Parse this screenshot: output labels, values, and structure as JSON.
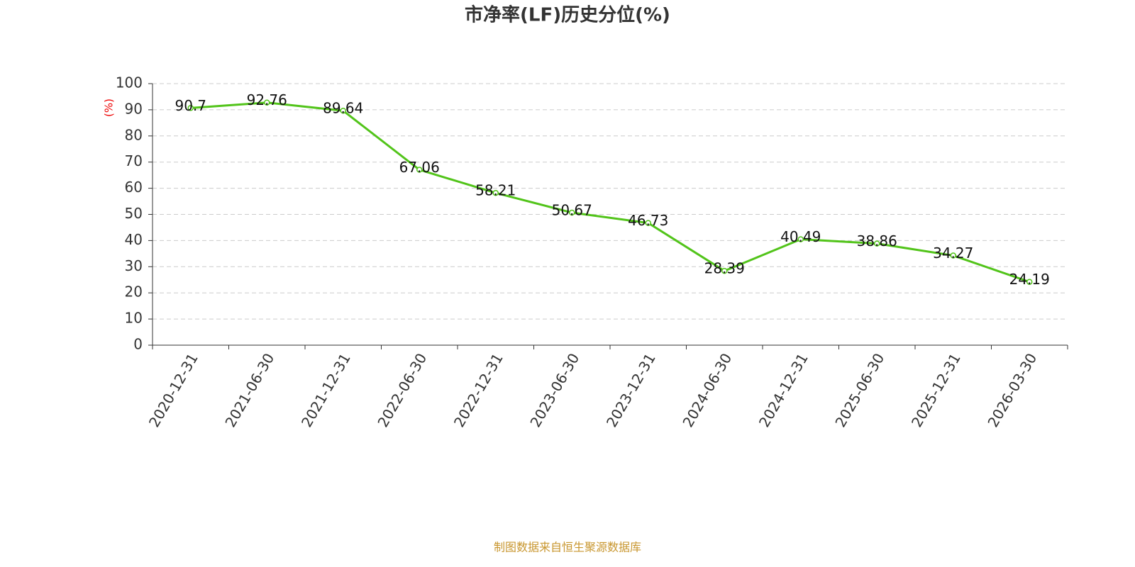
{
  "chart_data": {
    "type": "line",
    "title": "市净率(LF)历史分位(%)",
    "y_label": "(%)",
    "source": "制图数据来自恒生聚源数据库",
    "categories": [
      "2020-12-31",
      "2021-06-30",
      "2021-12-31",
      "2022-06-30",
      "2022-12-31",
      "2023-06-30",
      "2023-12-31",
      "2024-06-30",
      "2024-12-31",
      "2025-06-30",
      "2025-12-31",
      "2026-03-30"
    ],
    "values": [
      90.7,
      92.76,
      89.64,
      67.06,
      58.21,
      50.67,
      46.73,
      28.39,
      40.49,
      38.86,
      34.27,
      24.19
    ],
    "color": "#52c41a",
    "ylim": [
      0,
      100
    ],
    "yticks": [
      0,
      10,
      20,
      30,
      40,
      50,
      60,
      70,
      80,
      90,
      100
    ],
    "grid": true
  }
}
